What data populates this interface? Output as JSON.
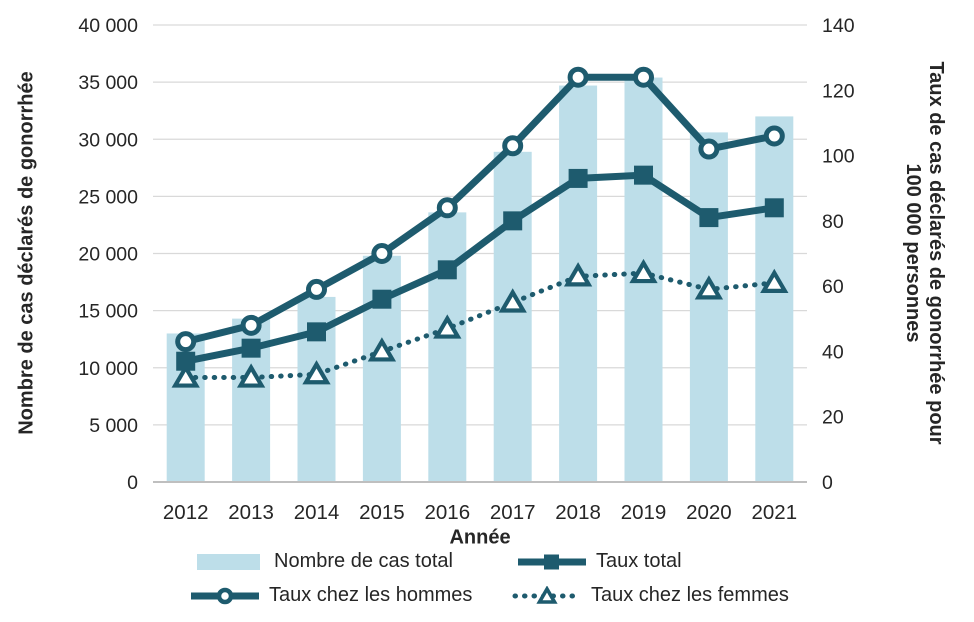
{
  "colors": {
    "bar": "#BDDEE9",
    "line": "#1E5B6E",
    "grid": "#D9D9D9",
    "axis_line": "#BFBFBF",
    "text": "#262626",
    "background": "#FFFFFF"
  },
  "chart_data": {
    "type": "combo-bar-line",
    "categories": [
      "2012",
      "2013",
      "2014",
      "2015",
      "2016",
      "2017",
      "2018",
      "2019",
      "2020",
      "2021"
    ],
    "bar_series": {
      "name": "Nombre de cas total",
      "axis": "left",
      "values": [
        13000,
        14300,
        16200,
        19800,
        23600,
        28900,
        34700,
        35400,
        30600,
        32000
      ]
    },
    "line_series": [
      {
        "name": "Taux chez les femmes",
        "axis": "right",
        "marker": "triangle",
        "line_style": "dotted",
        "values": [
          32,
          32,
          33,
          40,
          47,
          55,
          63,
          64,
          59,
          61
        ]
      },
      {
        "name": "Taux total",
        "axis": "right",
        "marker": "square",
        "line_style": "solid",
        "values": [
          37,
          41,
          46,
          56,
          65,
          80,
          93,
          94,
          81,
          84
        ]
      },
      {
        "name": "Taux chez les hommes",
        "axis": "right",
        "marker": "circle",
        "line_style": "solid",
        "values": [
          43,
          48,
          59,
          70,
          84,
          103,
          124,
          124,
          102,
          106
        ]
      }
    ],
    "x_axis": {
      "label": "Année"
    },
    "left_axis": {
      "label": "Nombre de cas déclarés de gonorrhée",
      "min": 0,
      "max": 40000,
      "step": 5000,
      "tick_labels": [
        "0",
        "5 000",
        "10 000",
        "15 000",
        "20 000",
        "25 000",
        "30 000",
        "35 000",
        "40 000"
      ]
    },
    "right_axis": {
      "label_line1": "Taux de cas déclarés de gonorrhée pour",
      "label_line2": "100 000 personnes",
      "min": 0,
      "max": 140,
      "step": 20,
      "tick_labels": [
        "0",
        "20",
        "40",
        "60",
        "80",
        "100",
        "120",
        "140"
      ]
    },
    "grid": true,
    "legend_position": "bottom"
  },
  "legend": {
    "items": [
      {
        "label": "Nombre de cas total",
        "swatch": "bar"
      },
      {
        "label": "Taux total",
        "swatch": "line-square"
      },
      {
        "label": "Taux chez les hommes",
        "swatch": "line-circle"
      },
      {
        "label": "Taux chez les femmes",
        "swatch": "dotted-triangle"
      }
    ]
  }
}
